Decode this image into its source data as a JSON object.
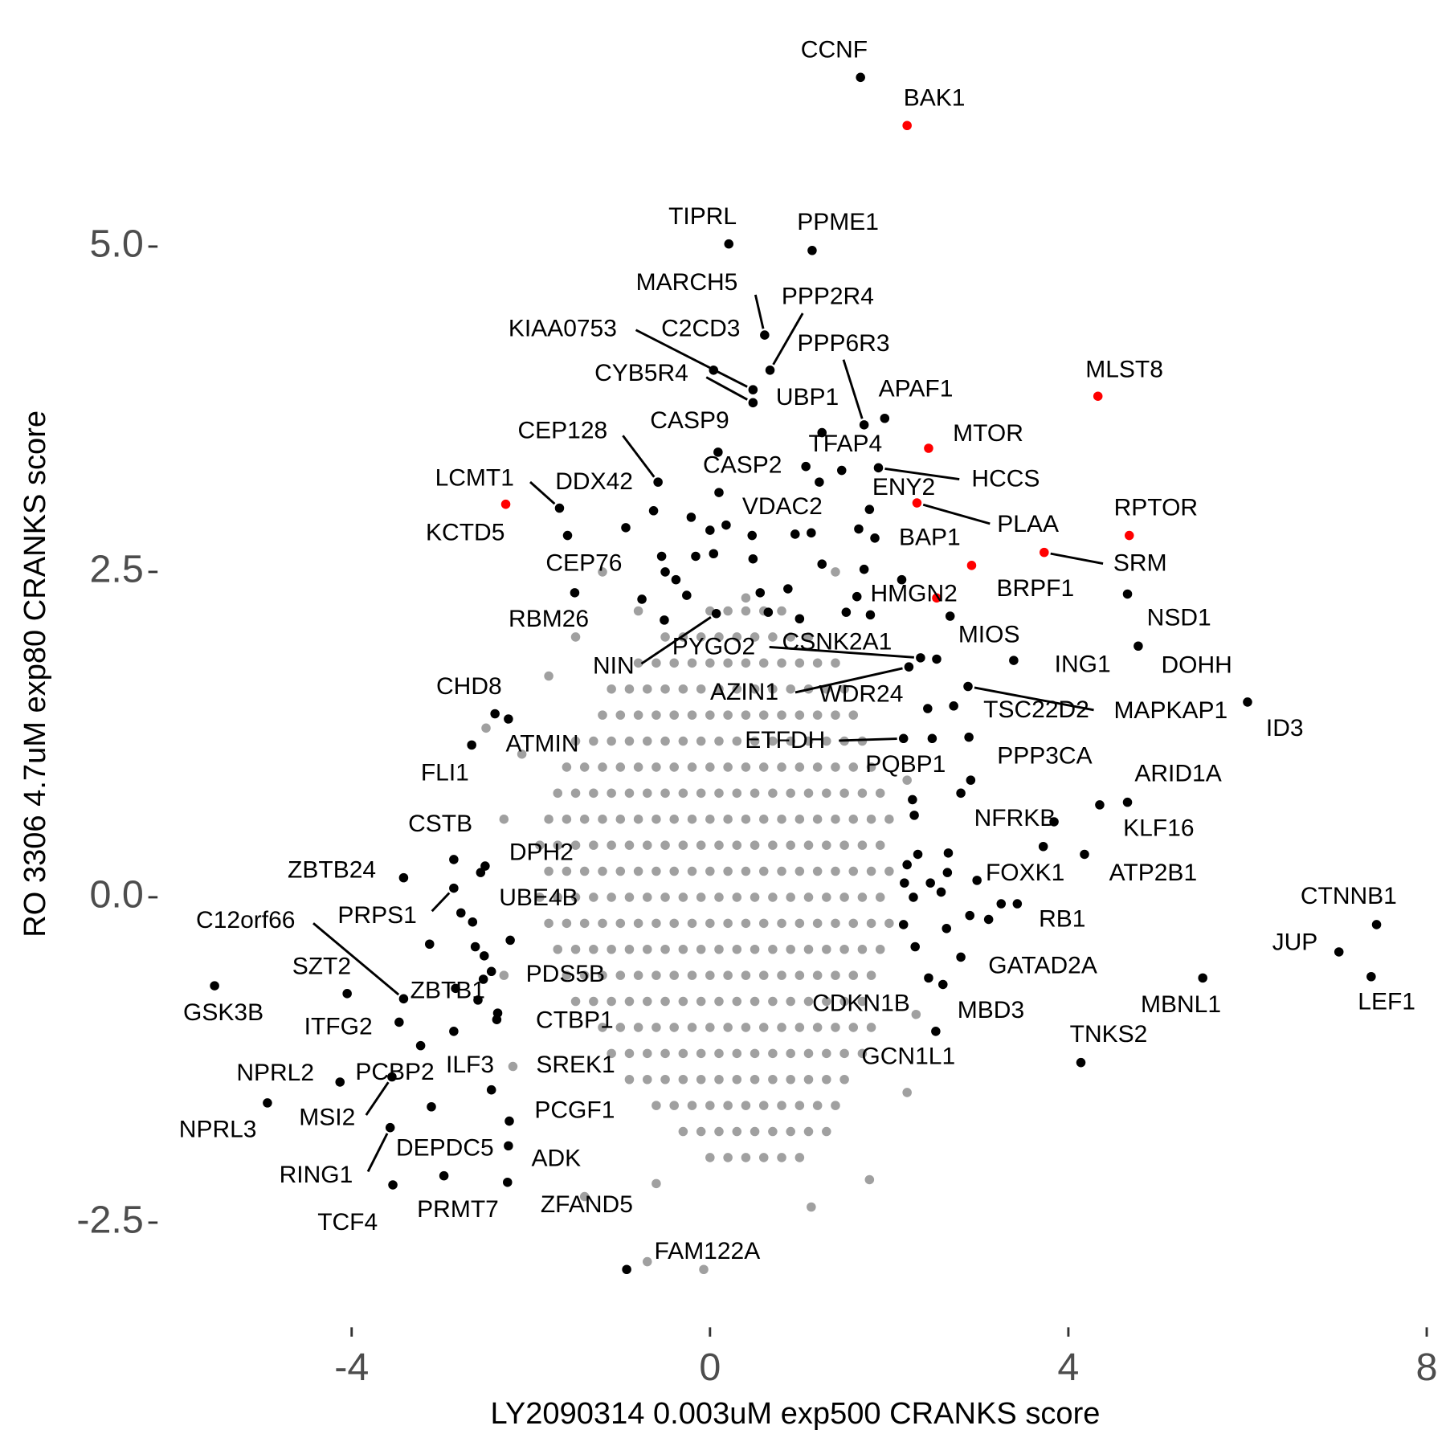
{
  "chart_data": {
    "type": "scatter",
    "xlabel": "LY2090314 0.003uM exp500 CRANKS score",
    "ylabel": "RO 3306 4.7uM exp80 CRANKS score",
    "xlim": [
      -6.1,
      8
    ],
    "ylim": [
      -3.2,
      6.7
    ],
    "xticks": [
      -4,
      0,
      4,
      8
    ],
    "yticks": [
      -2.5,
      {
        "value": 0,
        "label": "0.0"
      },
      2.5,
      {
        "value": 5,
        "label": "5.0"
      }
    ],
    "series": [
      {
        "color": "#a0a0a0",
        "x": [
          0,
          0.2,
          0.4,
          0.6,
          0.8,
          -0.5,
          -0.3,
          -0.1,
          0.1,
          0.3,
          0.5,
          0.7,
          0.9,
          1.1,
          -0.8,
          -0.6,
          -0.4,
          -0.2,
          0,
          0.2,
          0.4,
          0.6,
          0.8,
          1,
          1.2,
          1.4,
          -1.1,
          -0.9,
          -0.7,
          -0.5,
          -0.3,
          -0.1,
          0.1,
          0.3,
          0.5,
          0.7,
          0.9,
          1.1,
          1.3,
          1.5,
          -1.2,
          -1,
          -0.8,
          -0.6,
          -0.4,
          -0.2,
          0,
          0.2,
          0.4,
          0.6,
          0.8,
          1,
          1.2,
          1.4,
          1.6,
          -1.5,
          -1.3,
          -1.1,
          -0.9,
          -0.7,
          -0.5,
          -0.3,
          -0.1,
          0.1,
          0.3,
          0.5,
          0.7,
          0.9,
          1.1,
          1.3,
          1.5,
          1.7,
          -1.6,
          -1.4,
          -1.2,
          -1,
          -0.8,
          -0.6,
          -0.4,
          -0.2,
          0,
          0.2,
          0.4,
          0.6,
          0.8,
          1,
          1.2,
          1.4,
          1.6,
          1.8,
          -1.7,
          -1.5,
          -1.3,
          -1.1,
          -0.9,
          -0.7,
          -0.5,
          -0.3,
          -0.1,
          0.1,
          0.3,
          0.5,
          0.7,
          0.9,
          1.1,
          1.3,
          1.5,
          1.7,
          1.9,
          -1.8,
          -1.6,
          -1.4,
          -1.2,
          -1,
          -0.8,
          -0.6,
          -0.4,
          -0.2,
          0,
          0.2,
          0.4,
          0.6,
          0.8,
          1,
          1.2,
          1.4,
          1.6,
          1.8,
          2,
          -1.9,
          -1.7,
          -1.5,
          -1.3,
          -1.1,
          -0.9,
          -0.7,
          -0.5,
          -0.3,
          -0.1,
          0.1,
          0.3,
          0.5,
          0.7,
          0.9,
          1.1,
          1.3,
          1.5,
          1.7,
          1.9,
          -1.8,
          -1.6,
          -1.4,
          -1.2,
          -1,
          -0.8,
          -0.6,
          -0.4,
          -0.2,
          0,
          0.2,
          0.4,
          0.6,
          0.8,
          1,
          1.2,
          1.4,
          1.6,
          1.8,
          2,
          -1.9,
          -1.7,
          -1.5,
          -1.3,
          -1.1,
          -0.9,
          -0.7,
          -0.5,
          -0.3,
          -0.1,
          0.1,
          0.3,
          0.5,
          0.7,
          0.9,
          1.1,
          1.3,
          1.5,
          1.7,
          1.9,
          -1.8,
          -1.6,
          -1.4,
          -1.2,
          -1,
          -0.8,
          -0.6,
          -0.4,
          -0.2,
          0,
          0.2,
          0.4,
          0.6,
          0.8,
          1,
          1.2,
          1.4,
          1.6,
          1.8,
          2,
          -1.7,
          -1.5,
          -1.3,
          -1.1,
          -0.9,
          -0.7,
          -0.5,
          -0.3,
          -0.1,
          0.1,
          0.3,
          0.5,
          0.7,
          0.9,
          1.1,
          1.3,
          1.5,
          1.7,
          1.9,
          -1.6,
          -1.4,
          -1.2,
          -1,
          -0.8,
          -0.6,
          -0.4,
          -0.2,
          0,
          0.2,
          0.4,
          0.6,
          0.8,
          1,
          1.2,
          1.4,
          1.6,
          1.8,
          -1.5,
          -1.3,
          -1.1,
          -0.9,
          -0.7,
          -0.5,
          -0.3,
          -0.1,
          0.1,
          0.3,
          0.5,
          0.7,
          0.9,
          1.1,
          1.3,
          1.5,
          1.7,
          -1.2,
          -1,
          -0.8,
          -0.6,
          -0.4,
          -0.2,
          0,
          0.2,
          0.4,
          0.6,
          0.8,
          1,
          1.2,
          1.4,
          1.6,
          1.8,
          -1.1,
          -0.9,
          -0.7,
          -0.5,
          -0.3,
          -0.1,
          0.1,
          0.3,
          0.5,
          0.7,
          0.9,
          1.1,
          1.3,
          1.5,
          1.7,
          -0.9,
          -0.7,
          -0.5,
          -0.3,
          -0.1,
          0.1,
          0.3,
          0.5,
          0.7,
          0.9,
          1.1,
          1.3,
          1.5,
          -0.6,
          -0.4,
          -0.2,
          0,
          0.2,
          0.4,
          0.6,
          0.8,
          1,
          1.2,
          1.4,
          -0.3,
          -0.1,
          0.1,
          0.3,
          0.5,
          0.7,
          0.9,
          1.1,
          1.3,
          0,
          0.2,
          0.4,
          0.6,
          0.8,
          1,
          -2.5,
          -2.1,
          -1.5,
          -1.8,
          -2.3,
          -2.3,
          -2.2,
          2.2,
          2.3,
          1.78,
          1.13,
          -0.6,
          -1.4,
          -0.07,
          -0.7,
          1.4,
          0.4,
          -1.2,
          -0.8,
          2.2
        ],
        "y": [
          2.2,
          2.2,
          2.2,
          2.2,
          2.2,
          2,
          2,
          2,
          2,
          2,
          2,
          2,
          2,
          2,
          1.8,
          1.8,
          1.8,
          1.8,
          1.8,
          1.8,
          1.8,
          1.8,
          1.8,
          1.8,
          1.8,
          1.8,
          1.6,
          1.6,
          1.6,
          1.6,
          1.6,
          1.6,
          1.6,
          1.6,
          1.6,
          1.6,
          1.6,
          1.6,
          1.6,
          1.6,
          1.4,
          1.4,
          1.4,
          1.4,
          1.4,
          1.4,
          1.4,
          1.4,
          1.4,
          1.4,
          1.4,
          1.4,
          1.4,
          1.4,
          1.4,
          1.2,
          1.2,
          1.2,
          1.2,
          1.2,
          1.2,
          1.2,
          1.2,
          1.2,
          1.2,
          1.2,
          1.2,
          1.2,
          1.2,
          1.2,
          1.2,
          1.2,
          1,
          1,
          1,
          1,
          1,
          1,
          1,
          1,
          1,
          1,
          1,
          1,
          1,
          1,
          1,
          1,
          1,
          1,
          0.8,
          0.8,
          0.8,
          0.8,
          0.8,
          0.8,
          0.8,
          0.8,
          0.8,
          0.8,
          0.8,
          0.8,
          0.8,
          0.8,
          0.8,
          0.8,
          0.8,
          0.8,
          0.8,
          0.6,
          0.6,
          0.6,
          0.6,
          0.6,
          0.6,
          0.6,
          0.6,
          0.6,
          0.6,
          0.6,
          0.6,
          0.6,
          0.6,
          0.6,
          0.6,
          0.6,
          0.6,
          0.6,
          0.6,
          0.4,
          0.4,
          0.4,
          0.4,
          0.4,
          0.4,
          0.4,
          0.4,
          0.4,
          0.4,
          0.4,
          0.4,
          0.4,
          0.4,
          0.4,
          0.4,
          0.4,
          0.4,
          0.4,
          0.4,
          0.2,
          0.2,
          0.2,
          0.2,
          0.2,
          0.2,
          0.2,
          0.2,
          0.2,
          0.2,
          0.2,
          0.2,
          0.2,
          0.2,
          0.2,
          0.2,
          0.2,
          0.2,
          0.2,
          0.2,
          0,
          0,
          0,
          0,
          0,
          0,
          0,
          0,
          0,
          0,
          0,
          0,
          0,
          0,
          0,
          0,
          0,
          0,
          0,
          0,
          -0.2,
          -0.2,
          -0.2,
          -0.2,
          -0.2,
          -0.2,
          -0.2,
          -0.2,
          -0.2,
          -0.2,
          -0.2,
          -0.2,
          -0.2,
          -0.2,
          -0.2,
          -0.2,
          -0.2,
          -0.2,
          -0.2,
          -0.2,
          -0.4,
          -0.4,
          -0.4,
          -0.4,
          -0.4,
          -0.4,
          -0.4,
          -0.4,
          -0.4,
          -0.4,
          -0.4,
          -0.4,
          -0.4,
          -0.4,
          -0.4,
          -0.4,
          -0.4,
          -0.4,
          -0.4,
          -0.6,
          -0.6,
          -0.6,
          -0.6,
          -0.6,
          -0.6,
          -0.6,
          -0.6,
          -0.6,
          -0.6,
          -0.6,
          -0.6,
          -0.6,
          -0.6,
          -0.6,
          -0.6,
          -0.6,
          -0.6,
          -0.8,
          -0.8,
          -0.8,
          -0.8,
          -0.8,
          -0.8,
          -0.8,
          -0.8,
          -0.8,
          -0.8,
          -0.8,
          -0.8,
          -0.8,
          -0.8,
          -0.8,
          -0.8,
          -0.8,
          -1,
          -1,
          -1,
          -1,
          -1,
          -1,
          -1,
          -1,
          -1,
          -1,
          -1,
          -1,
          -1,
          -1,
          -1,
          -1,
          -1.2,
          -1.2,
          -1.2,
          -1.2,
          -1.2,
          -1.2,
          -1.2,
          -1.2,
          -1.2,
          -1.2,
          -1.2,
          -1.2,
          -1.2,
          -1.2,
          -1.2,
          -1.4,
          -1.4,
          -1.4,
          -1.4,
          -1.4,
          -1.4,
          -1.4,
          -1.4,
          -1.4,
          -1.4,
          -1.4,
          -1.4,
          -1.4,
          -1.6,
          -1.6,
          -1.6,
          -1.6,
          -1.6,
          -1.6,
          -1.6,
          -1.6,
          -1.6,
          -1.6,
          -1.6,
          -1.8,
          -1.8,
          -1.8,
          -1.8,
          -1.8,
          -1.8,
          -1.8,
          -1.8,
          -1.8,
          -2,
          -2,
          -2,
          -2,
          -2,
          -2,
          1.3,
          1.1,
          2,
          1.7,
          0.6,
          -0.6,
          -1.3,
          0.9,
          -0.9,
          -2.17,
          -2.38,
          -2.2,
          -2.3,
          -2.86,
          -2.8,
          2.5,
          2.3,
          2.5,
          2.2,
          -1.5
        ]
      },
      {
        "color": "#000000",
        "x": [
          1.22,
          1.07,
          1.66,
          1.13,
          0.47,
          0.18,
          0,
          -0.21,
          0.04,
          -0.16,
          0.48,
          1.25,
          1.72,
          2.14,
          1.52,
          1.79,
          0.56,
          0.87,
          0.65,
          1,
          -0.38,
          -0.5,
          -0.26,
          -0.76,
          -0.54,
          -0.94,
          -1.59,
          1.64,
          2.48,
          2.26,
          2.28,
          2.32,
          2.2,
          2.17,
          2.27,
          2.46,
          2.66,
          2.65,
          2.58,
          2.9,
          3.11,
          3.25,
          2.16,
          2.29,
          2.64,
          2.8,
          3.84,
          -2.65,
          -2.62,
          -2.52,
          -2.23,
          -2.59,
          -2.38,
          -2.84,
          -2.53,
          -2.78
        ],
        "y": [
          3.19,
          3.31,
          2.83,
          2.8,
          2.78,
          2.86,
          2.82,
          2.92,
          2.64,
          2.62,
          2.6,
          2.56,
          2.52,
          2.44,
          2.19,
          2.17,
          2.34,
          2.37,
          2.19,
          2.14,
          2.44,
          2.5,
          2.32,
          2.29,
          2.62,
          2.84,
          2.78,
          2.31,
          1.22,
          0.75,
          0.63,
          0.33,
          0.25,
          0.11,
          0,
          0.11,
          0.34,
          0.19,
          0.04,
          -0.14,
          -0.17,
          -0.05,
          -0.21,
          -0.38,
          -0.24,
          0.8,
          0.58,
          -0.19,
          -0.38,
          -0.45,
          -0.33,
          -0.79,
          -0.94,
          -0.7,
          -0.63,
          -0.12
        ]
      },
      {
        "color": "#000000",
        "labels": [
          "CCNF",
          "TIPRL",
          "PPME1",
          "MARCH5",
          "PPP2R4",
          "C2CD3",
          "KIAA0753",
          "CYB5R4",
          "PPP6R3",
          "UBP1",
          "APAF1",
          "CASP9",
          "TFAP4",
          "CEP128",
          "CASP2",
          "HCCS",
          "ENY2",
          "LCMT1",
          "DDX42",
          "VDAC2",
          "BAP1",
          "CEP76",
          "NSD1",
          "DOHH",
          "RBM26",
          "MIOS",
          "NIN",
          "PYGO2",
          "CSNK2A1",
          "AZIN1",
          "ING1",
          "MAPKAP1",
          "TSC22D2",
          "WDR24",
          "ETFDH",
          "ID3",
          "PQBP1",
          "PPP3CA",
          "ARID1A",
          "KLF16",
          "NFRKB",
          "FOXK1",
          "ATP2B1",
          "RB1",
          "GATAD2A",
          "MBD3",
          "CDKN1B",
          "TNKS2",
          "MBNL1",
          "GCN1L1",
          "CTNNB1",
          "JUP",
          "LEF1",
          "CHD8",
          "ATMIN",
          "FLI1",
          "CSTB",
          "ZBTB24",
          "DPH2",
          "UBE4B",
          "PRPS1",
          "C12orf66",
          "SZT2",
          "ZBTB1",
          "GSK3B",
          "PDS5B",
          "ITFG2",
          "CTBP1",
          "NPRL2",
          "PCBP2",
          "ILF3",
          "SREK1",
          "MSI2",
          "NPRL3",
          "DEPDC5",
          "PCGF1",
          "ADK",
          "ZFAND5",
          "RING1",
          "TCF4",
          "PRMT7",
          "FAM122A"
        ],
        "x": [
          1.68,
          0.21,
          1.14,
          0.61,
          0.67,
          0.04,
          0.48,
          0.48,
          1.72,
          1.25,
          1.95,
          0.09,
          1.47,
          -0.58,
          0.1,
          1.88,
          1.78,
          -1.68,
          -0.63,
          0.95,
          1.84,
          -1.51,
          4.66,
          4.78,
          -0.51,
          2.68,
          0.07,
          2.35,
          2.53,
          2.22,
          3.39,
          2.88,
          2.43,
          2.72,
          2.16,
          6,
          2.89,
          2.91,
          4.66,
          4.35,
          3.72,
          2.98,
          4.18,
          3.43,
          2.8,
          2.6,
          2.44,
          4.14,
          5.5,
          2.52,
          7.44,
          7.02,
          7.38,
          -2.4,
          -2.25,
          -2.66,
          -2.86,
          -3.42,
          -2.51,
          -2.56,
          -2.86,
          -3.42,
          -4.05,
          -3.13,
          -5.53,
          -2.44,
          -3.47,
          -2.37,
          -4.13,
          -3.23,
          -2.86,
          -2.44,
          -3.55,
          -4.94,
          -3.11,
          -2.24,
          -2.25,
          -2.26,
          -3.57,
          -3.54,
          -2.97,
          -0.93
        ],
        "y": [
          6.3,
          5.02,
          4.97,
          4.32,
          4.05,
          4.05,
          3.9,
          3.8,
          3.63,
          3.57,
          3.68,
          3.42,
          3.28,
          3.19,
          3.11,
          3.3,
          2.98,
          2.99,
          2.97,
          2.79,
          2.76,
          2.34,
          2.33,
          1.93,
          2.13,
          2.16,
          2.18,
          1.84,
          1.83,
          1.77,
          1.82,
          1.62,
          1.45,
          1.47,
          1.22,
          1.5,
          1.23,
          0.9,
          0.73,
          0.71,
          0.39,
          0.13,
          0.33,
          -0.05,
          -0.46,
          -0.67,
          -0.62,
          -1.27,
          -0.62,
          -1.03,
          -0.21,
          -0.42,
          -0.61,
          1.41,
          1.37,
          1.17,
          0.29,
          0.15,
          0.24,
          0.19,
          0.07,
          -0.78,
          -0.74,
          -0.36,
          -0.68,
          -0.57,
          -0.96,
          -0.89,
          -1.42,
          -1.14,
          -1.03,
          -1.48,
          -1.38,
          -1.58,
          -1.61,
          -1.72,
          -1.91,
          -2.19,
          -1.77,
          -2.21,
          -2.14,
          -2.86
        ]
      },
      {
        "color": "#ff0000",
        "labels": [
          "BAK1",
          "MLST8",
          "MTOR",
          "PLAA",
          "RPTOR",
          "SRM",
          "BRPF1",
          "HMGN2",
          "KCTD5"
        ],
        "x": [
          2.2,
          4.33,
          2.44,
          2.31,
          4.68,
          3.73,
          2.92,
          2.53,
          -2.28
        ],
        "y": [
          5.93,
          3.85,
          3.45,
          3.03,
          2.78,
          2.65,
          2.55,
          2.3,
          3.02
        ]
      }
    ]
  }
}
